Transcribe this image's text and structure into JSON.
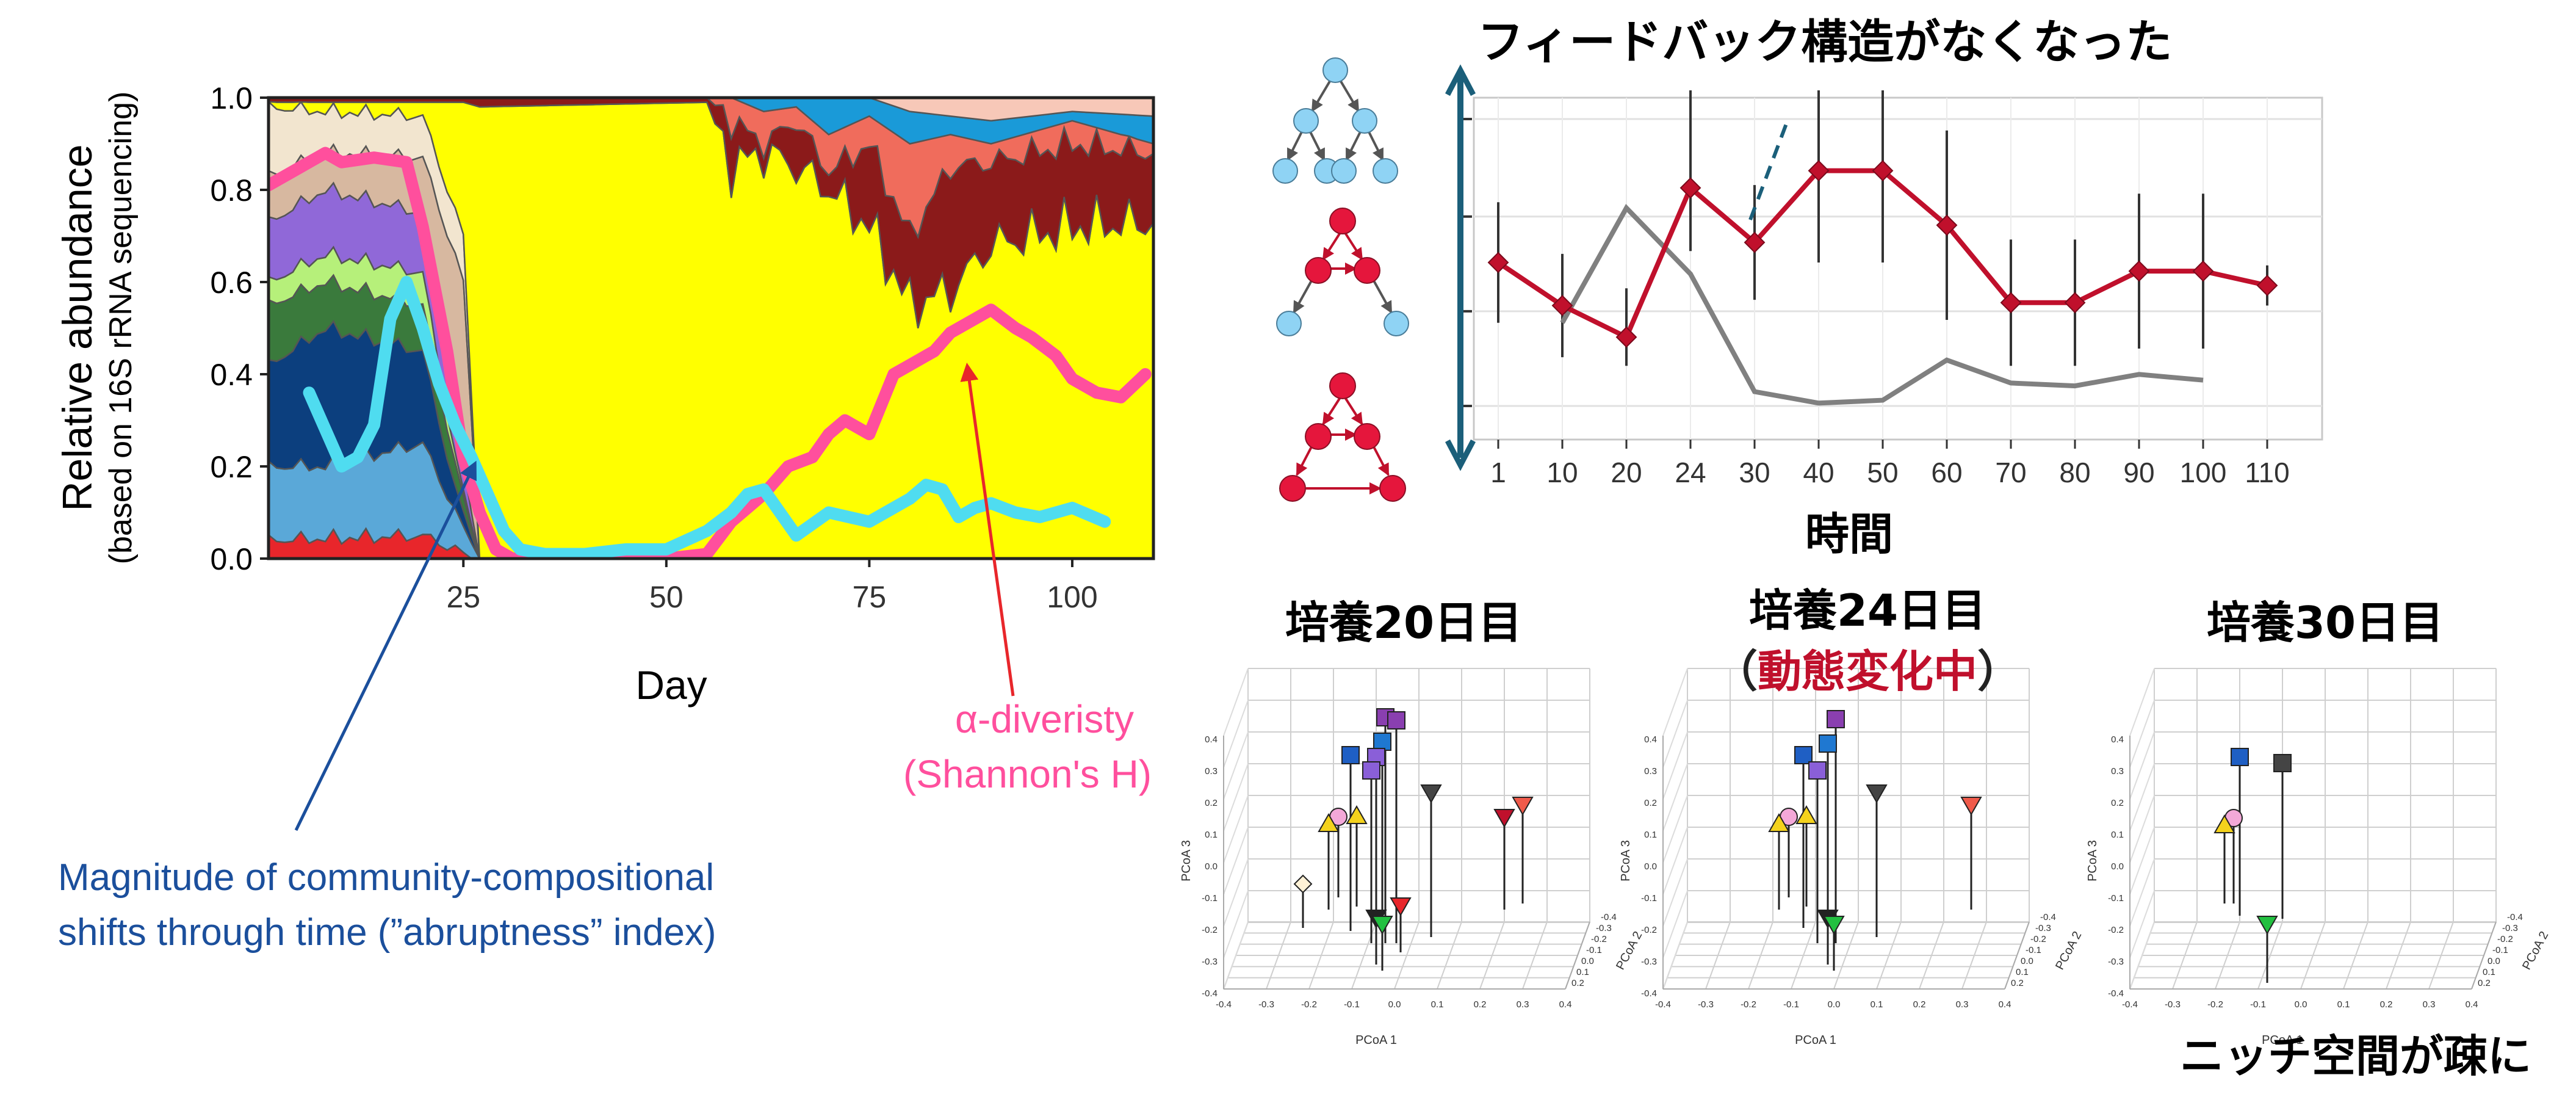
{
  "chart_data": [
    {
      "type": "area",
      "ylabel": "Relative abundance",
      "ylabel2": "(based on 16S rRNA sequencing)",
      "xlabel": "Day",
      "xticks": [
        "25",
        "50",
        "75",
        "100"
      ],
      "xtick_values": [
        25,
        50,
        75,
        100
      ],
      "yticks": [
        "0.0",
        "0.2",
        "0.4",
        "0.6",
        "0.8",
        "1.0"
      ],
      "ytick_values": [
        0,
        0.2,
        0.4,
        0.6,
        0.8,
        1.0
      ],
      "xlim": [
        1,
        110
      ],
      "ylim": [
        0,
        1
      ],
      "area_colors": [
        "#e8262b",
        "#5aa8d8",
        "#0c3f7e",
        "#3a7a3c",
        "#b6f07a",
        "#9068d8",
        "#d7b8a0",
        "#f2e5cf",
        "#ffff00",
        "#8b1a1a",
        "#f06c5c",
        "#1a9ad8",
        "#f7c8b8"
      ],
      "alpha_diversity": {
        "name": "α-diveristy (Shannon's H)",
        "color": "#ff4f9d",
        "x": [
          1,
          5,
          8,
          10,
          14,
          18,
          20,
          23,
          25,
          27,
          29,
          31,
          35,
          40,
          45,
          50,
          55,
          58,
          60,
          62,
          65,
          68,
          70,
          72,
          75,
          78,
          80,
          83,
          85,
          88,
          90,
          93,
          95,
          98,
          100,
          103,
          106,
          109
        ],
        "y": [
          0.81,
          0.85,
          0.88,
          0.86,
          0.87,
          0.86,
          0.72,
          0.45,
          0.22,
          0.1,
          0.02,
          0.0,
          0.0,
          0.0,
          0.0,
          0.0,
          0.01,
          0.08,
          0.11,
          0.14,
          0.2,
          0.22,
          0.27,
          0.3,
          0.27,
          0.4,
          0.42,
          0.45,
          0.49,
          0.52,
          0.54,
          0.5,
          0.48,
          0.44,
          0.39,
          0.36,
          0.35,
          0.4
        ]
      },
      "abruptness": {
        "name": "abruptness index",
        "color": "#4fdcf0",
        "x": [
          6,
          8,
          10,
          12,
          14,
          16,
          18,
          20,
          22,
          24,
          26,
          28,
          30,
          32,
          35,
          40,
          45,
          50,
          55,
          58,
          60,
          62,
          64,
          66,
          70,
          75,
          80,
          82,
          84,
          86,
          88,
          90,
          93,
          96,
          100,
          104
        ],
        "y": [
          0.36,
          0.28,
          0.2,
          0.22,
          0.29,
          0.52,
          0.6,
          0.5,
          0.38,
          0.29,
          0.22,
          0.14,
          0.06,
          0.02,
          0.01,
          0.01,
          0.02,
          0.02,
          0.06,
          0.1,
          0.14,
          0.15,
          0.1,
          0.05,
          0.1,
          0.08,
          0.13,
          0.16,
          0.15,
          0.09,
          0.11,
          0.12,
          0.1,
          0.09,
          0.11,
          0.08
        ]
      },
      "annotations": [
        {
          "text": "Magnitude of community-compositional shifts through time (”abruptness” index)",
          "color": "#1b4f9c"
        },
        {
          "text": "α-diveristy (Shannon's H)",
          "color": "#ff4f9d"
        }
      ]
    },
    {
      "type": "line",
      "title": "フィードバック構造がなくなった",
      "xlabel": "時間",
      "categories": [
        "1",
        "10",
        "20",
        "24",
        "30",
        "40",
        "50",
        "60",
        "70",
        "80",
        "90",
        "100",
        "110"
      ],
      "ylim": [
        0,
        1
      ],
      "series": [
        {
          "color": "#c0102c",
          "values": [
            0.5,
            0.35,
            0.24,
            0.76,
            0.57,
            0.82,
            0.82,
            0.63,
            0.36,
            0.36,
            0.47,
            0.47,
            0.42
          ],
          "err_low": [
            0.29,
            0.17,
            0.14,
            0.54,
            0.37,
            0.5,
            0.5,
            0.3,
            0.14,
            0.14,
            0.2,
            0.2,
            0.35
          ],
          "err_high": [
            0.71,
            0.53,
            0.41,
            1.1,
            0.77,
            1.1,
            1.1,
            0.96,
            0.58,
            0.58,
            0.74,
            0.74,
            0.49
          ]
        },
        {
          "color": "#808080",
          "values": [
            null,
            0.29,
            0.69,
            0.46,
            0.05,
            0.01,
            0.02,
            0.16,
            0.08,
            0.07,
            0.11,
            0.09,
            null
          ]
        }
      ]
    },
    {
      "type": "scatter",
      "title": "培養20日目",
      "xlabel": "PCoA 1",
      "ylabel": "PCoA 3",
      "zlabel": "PCoA 2",
      "xticks": [
        "-0.4",
        "-0.3",
        "-0.2",
        "-0.1",
        "0.0",
        "0.1",
        "0.2",
        "0.3",
        "0.4"
      ],
      "yticks": [
        "-0.4",
        "-0.3",
        "-0.2",
        "-0.1",
        "0.0",
        "0.1",
        "0.2",
        "0.3",
        "0.4"
      ],
      "zticks": [
        "-0.4",
        "-0.3",
        "-0.2",
        "-0.1",
        "0.0",
        "0.1",
        "0.2"
      ]
    },
    {
      "type": "scatter",
      "title": "培養24日目",
      "subtitle_open": "（",
      "subtitle": "動態変化中",
      "subtitle_close": "）",
      "subtitle_color": "#c0102c",
      "xlabel": "PCoA 1",
      "ylabel": "PCoA 3",
      "zlabel": "PCoA 2",
      "xticks": [
        "-0.4",
        "-0.3",
        "-0.2",
        "-0.1",
        "0.0",
        "0.1",
        "0.2",
        "0.3",
        "0.4"
      ],
      "yticks": [
        "-0.4",
        "-0.3",
        "-0.2",
        "-0.1",
        "0.0",
        "0.1",
        "0.2",
        "0.3",
        "0.4"
      ],
      "zticks": [
        "-0.4",
        "-0.3",
        "-0.2",
        "-0.1",
        "0.0",
        "0.1",
        "0.2"
      ]
    },
    {
      "type": "scatter",
      "title": "培養30日目",
      "xlabel": "PCoA 1",
      "ylabel": "PCoA 3",
      "zlabel": "PCoA 2",
      "xticks": [
        "-0.4",
        "-0.3",
        "-0.2",
        "-0.1",
        "0.0",
        "0.1",
        "0.2",
        "0.3",
        "0.4"
      ],
      "yticks": [
        "-0.4",
        "-0.3",
        "-0.2",
        "-0.1",
        "0.0",
        "0.1",
        "0.2",
        "0.3",
        "0.4"
      ],
      "zticks": [
        "-0.4",
        "-0.3",
        "-0.2",
        "-0.1",
        "0.0",
        "0.1",
        "0.2"
      ],
      "caption": "ニッチ空間が疎に"
    }
  ]
}
